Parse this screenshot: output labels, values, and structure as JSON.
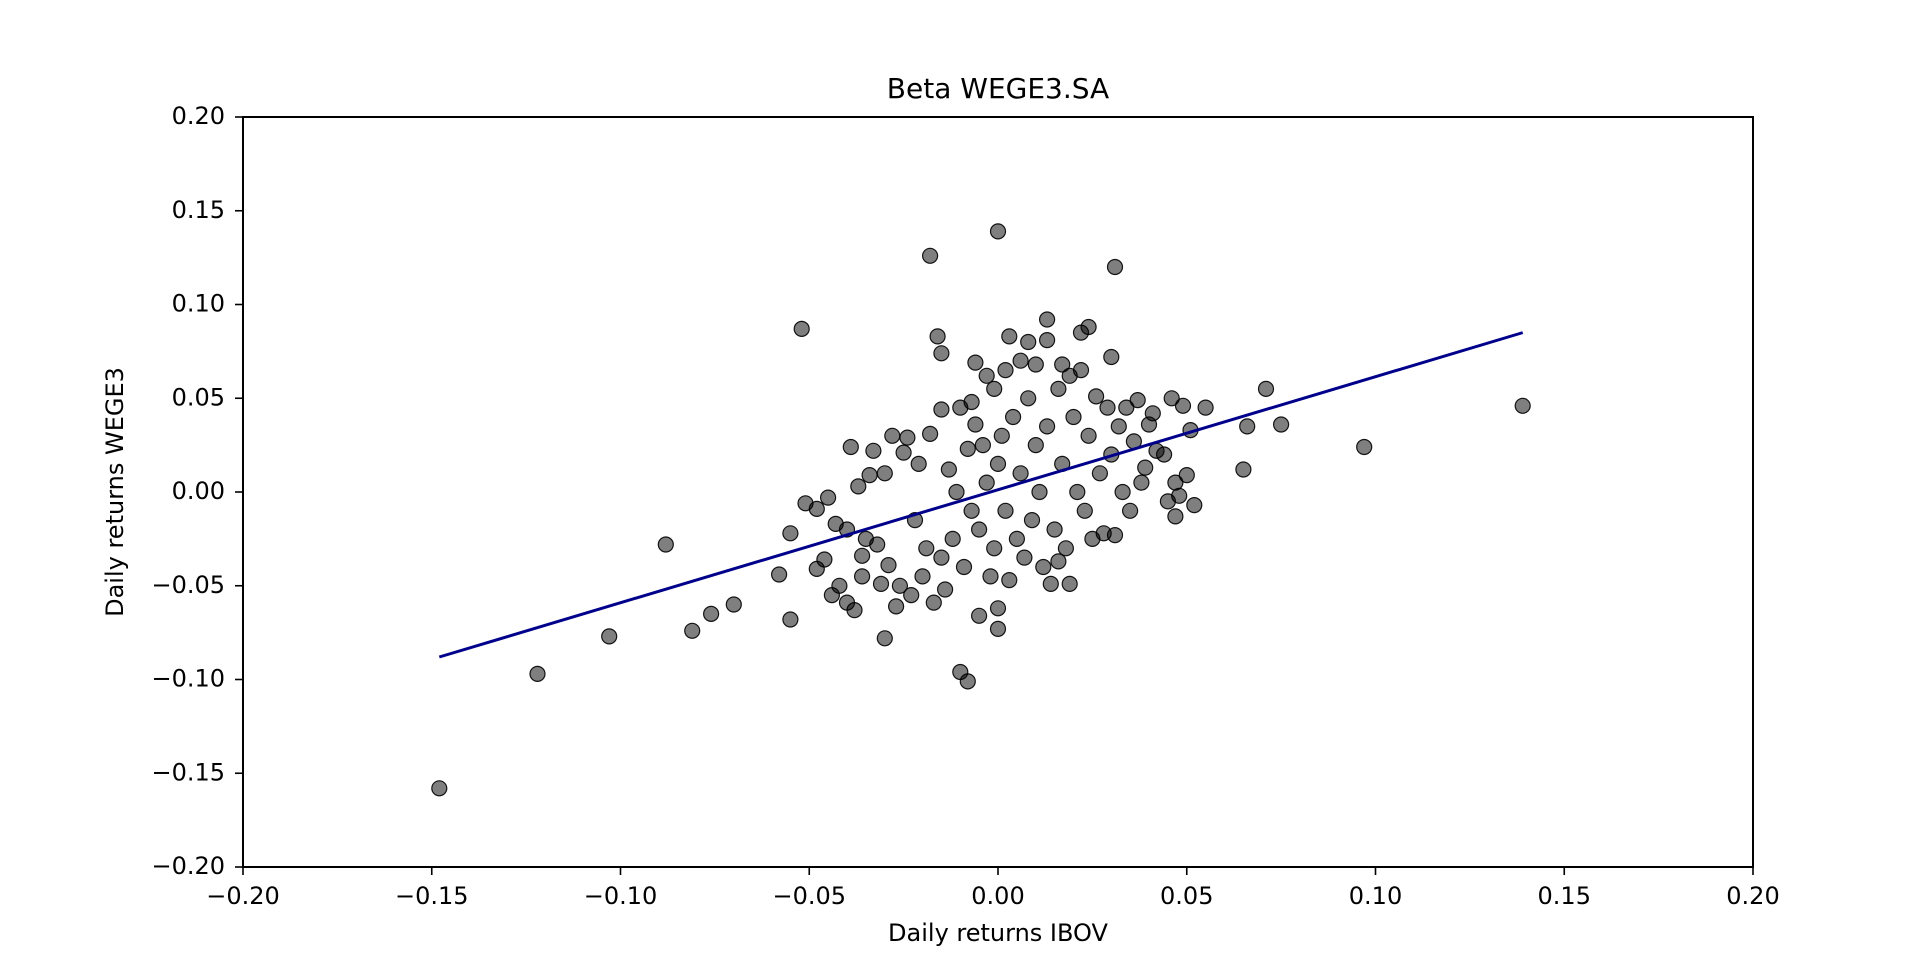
{
  "chart_data": {
    "type": "scatter",
    "title": "Beta WEGE3.SA",
    "xlabel": "Daily returns IBOV",
    "ylabel": "Daily returns WEGE3",
    "xlim": [
      -0.2,
      0.2
    ],
    "ylim": [
      -0.2,
      0.2
    ],
    "xticks": [
      "−0.20",
      "−0.15",
      "−0.10",
      "−0.05",
      "0.00",
      "0.05",
      "0.10",
      "0.15",
      "0.20"
    ],
    "yticks": [
      "−0.20",
      "−0.15",
      "−0.10",
      "−0.05",
      "0.00",
      "0.05",
      "0.10",
      "0.15",
      "0.20"
    ],
    "xtick_values": [
      -0.2,
      -0.15,
      -0.1,
      -0.05,
      0,
      0.05,
      0.1,
      0.15,
      0.2
    ],
    "ytick_values": [
      -0.2,
      -0.15,
      -0.1,
      -0.05,
      0,
      0.05,
      0.1,
      0.15,
      0.2
    ],
    "grid": false,
    "legend": "none",
    "point_color": "#000000",
    "point_opacity": 0.5,
    "line_color": "#00008b",
    "regression_line": {
      "x": [
        -0.148,
        0.139
      ],
      "y": [
        -0.088,
        0.085
      ]
    },
    "points": [
      [
        -0.148,
        -0.158
      ],
      [
        -0.122,
        -0.097
      ],
      [
        -0.103,
        -0.077
      ],
      [
        -0.088,
        -0.028
      ],
      [
        -0.081,
        -0.074
      ],
      [
        -0.076,
        -0.065
      ],
      [
        -0.07,
        -0.06
      ],
      [
        -0.058,
        -0.044
      ],
      [
        -0.055,
        -0.022
      ],
      [
        -0.055,
        -0.068
      ],
      [
        -0.052,
        0.087
      ],
      [
        -0.051,
        -0.006
      ],
      [
        -0.048,
        -0.041
      ],
      [
        -0.048,
        -0.009
      ],
      [
        -0.046,
        -0.036
      ],
      [
        -0.045,
        -0.003
      ],
      [
        -0.044,
        -0.055
      ],
      [
        -0.043,
        -0.017
      ],
      [
        -0.042,
        -0.05
      ],
      [
        -0.04,
        -0.059
      ],
      [
        -0.04,
        -0.02
      ],
      [
        -0.039,
        0.024
      ],
      [
        -0.038,
        -0.063
      ],
      [
        -0.037,
        0.003
      ],
      [
        -0.036,
        -0.034
      ],
      [
        -0.036,
        -0.045
      ],
      [
        -0.035,
        -0.025
      ],
      [
        -0.034,
        0.009
      ],
      [
        -0.033,
        0.022
      ],
      [
        -0.032,
        -0.028
      ],
      [
        -0.031,
        -0.049
      ],
      [
        -0.03,
        -0.078
      ],
      [
        -0.03,
        0.01
      ],
      [
        -0.029,
        -0.039
      ],
      [
        -0.028,
        0.03
      ],
      [
        -0.027,
        -0.061
      ],
      [
        -0.026,
        -0.05
      ],
      [
        -0.025,
        0.021
      ],
      [
        -0.024,
        0.029
      ],
      [
        -0.023,
        -0.055
      ],
      [
        -0.022,
        -0.015
      ],
      [
        -0.021,
        0.015
      ],
      [
        -0.02,
        -0.045
      ],
      [
        -0.019,
        -0.03
      ],
      [
        -0.018,
        0.126
      ],
      [
        -0.018,
        0.031
      ],
      [
        -0.017,
        -0.059
      ],
      [
        -0.016,
        0.083
      ],
      [
        -0.015,
        0.074
      ],
      [
        -0.015,
        0.044
      ],
      [
        -0.015,
        -0.035
      ],
      [
        -0.014,
        -0.052
      ],
      [
        -0.013,
        0.012
      ],
      [
        -0.012,
        -0.025
      ],
      [
        -0.011,
        0.0
      ],
      [
        -0.01,
        -0.096
      ],
      [
        -0.01,
        0.045
      ],
      [
        -0.009,
        -0.04
      ],
      [
        -0.008,
        -0.101
      ],
      [
        -0.008,
        0.023
      ],
      [
        -0.007,
        0.048
      ],
      [
        -0.007,
        -0.01
      ],
      [
        -0.006,
        0.069
      ],
      [
        -0.006,
        0.036
      ],
      [
        -0.005,
        -0.066
      ],
      [
        -0.005,
        -0.02
      ],
      [
        -0.004,
        0.025
      ],
      [
        -0.003,
        0.062
      ],
      [
        -0.003,
        0.005
      ],
      [
        -0.002,
        -0.045
      ],
      [
        -0.001,
        0.055
      ],
      [
        -0.001,
        -0.03
      ],
      [
        0.0,
        0.139
      ],
      [
        0.0,
        -0.062
      ],
      [
        0.0,
        -0.073
      ],
      [
        0.0,
        0.015
      ],
      [
        0.001,
        0.03
      ],
      [
        0.002,
        -0.01
      ],
      [
        0.002,
        0.065
      ],
      [
        0.003,
        -0.047
      ],
      [
        0.003,
        0.083
      ],
      [
        0.004,
        0.04
      ],
      [
        0.005,
        -0.025
      ],
      [
        0.006,
        0.07
      ],
      [
        0.006,
        0.01
      ],
      [
        0.007,
        -0.035
      ],
      [
        0.008,
        0.08
      ],
      [
        0.008,
        0.05
      ],
      [
        0.009,
        -0.015
      ],
      [
        0.01,
        0.068
      ],
      [
        0.01,
        0.025
      ],
      [
        0.011,
        0.0
      ],
      [
        0.012,
        -0.04
      ],
      [
        0.013,
        0.092
      ],
      [
        0.013,
        0.081
      ],
      [
        0.013,
        0.035
      ],
      [
        0.014,
        -0.049
      ],
      [
        0.015,
        -0.02
      ],
      [
        0.016,
        0.055
      ],
      [
        0.016,
        -0.037
      ],
      [
        0.017,
        0.068
      ],
      [
        0.017,
        0.015
      ],
      [
        0.018,
        -0.03
      ],
      [
        0.019,
        0.062
      ],
      [
        0.019,
        -0.049
      ],
      [
        0.02,
        0.04
      ],
      [
        0.021,
        0.0
      ],
      [
        0.022,
        0.085
      ],
      [
        0.022,
        0.065
      ],
      [
        0.023,
        -0.01
      ],
      [
        0.024,
        0.088
      ],
      [
        0.024,
        0.03
      ],
      [
        0.025,
        -0.025
      ],
      [
        0.026,
        0.051
      ],
      [
        0.027,
        0.01
      ],
      [
        0.028,
        -0.022
      ],
      [
        0.029,
        0.045
      ],
      [
        0.03,
        0.072
      ],
      [
        0.03,
        0.02
      ],
      [
        0.031,
        0.12
      ],
      [
        0.031,
        -0.023
      ],
      [
        0.032,
        0.035
      ],
      [
        0.033,
        0.0
      ],
      [
        0.034,
        0.045
      ],
      [
        0.035,
        -0.01
      ],
      [
        0.036,
        0.027
      ],
      [
        0.037,
        0.049
      ],
      [
        0.038,
        0.005
      ],
      [
        0.039,
        0.013
      ],
      [
        0.04,
        0.036
      ],
      [
        0.041,
        0.042
      ],
      [
        0.042,
        0.022
      ],
      [
        0.044,
        0.02
      ],
      [
        0.045,
        -0.005
      ],
      [
        0.046,
        0.05
      ],
      [
        0.047,
        -0.013
      ],
      [
        0.047,
        0.005
      ],
      [
        0.048,
        -0.002
      ],
      [
        0.049,
        0.046
      ],
      [
        0.05,
        0.009
      ],
      [
        0.051,
        0.033
      ],
      [
        0.052,
        -0.007
      ],
      [
        0.055,
        0.045
      ],
      [
        0.065,
        0.012
      ],
      [
        0.066,
        0.035
      ],
      [
        0.071,
        0.055
      ],
      [
        0.075,
        0.036
      ],
      [
        0.097,
        0.024
      ],
      [
        0.139,
        0.046
      ]
    ]
  }
}
